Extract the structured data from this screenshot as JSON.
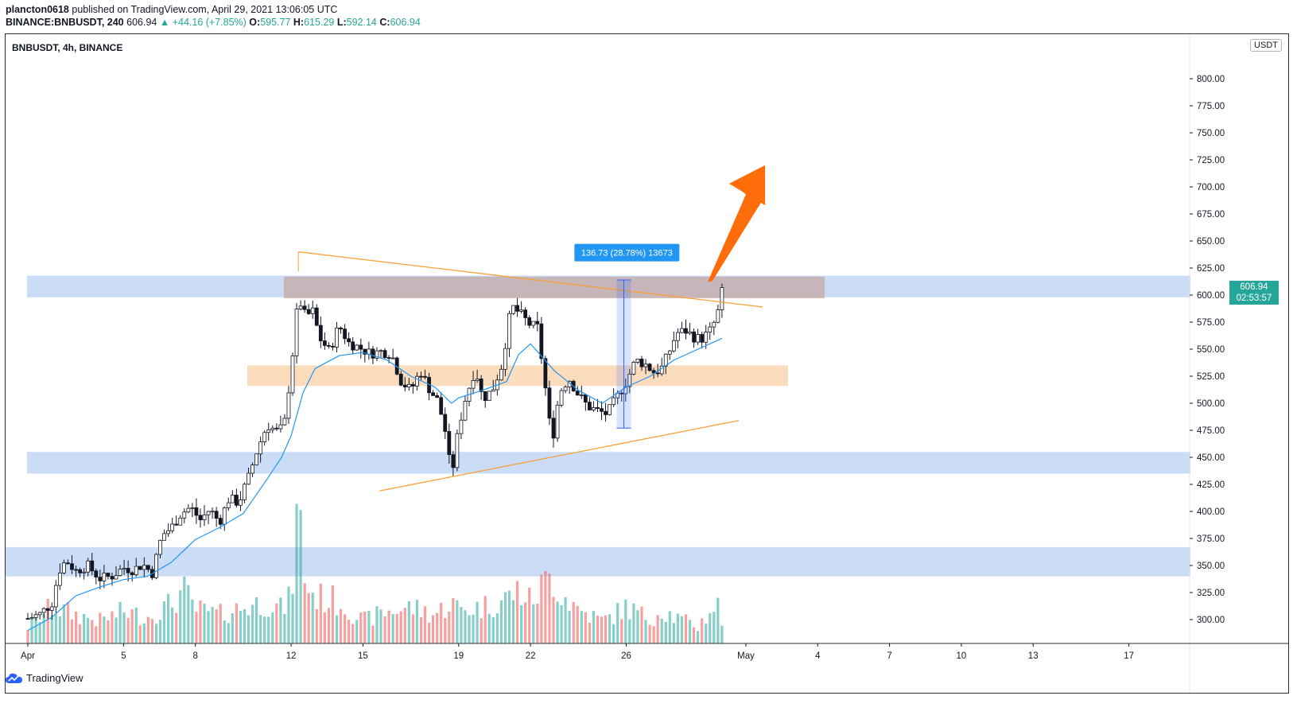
{
  "header": {
    "user": "plancton0618",
    "published": "published on TradingView.com, April 29, 2021 13:06:05 UTC",
    "symbol_interval": "BINANCE:BNBUSDT, 240",
    "last": "606.94",
    "change": "▲ +44.16 (+7.85%)",
    "o_label": "O:",
    "o": "595.77",
    "h_label": "H:",
    "h": "615.29",
    "l_label": "L:",
    "l": "592.14",
    "c_label": "C:",
    "c": "606.94"
  },
  "chart": {
    "symbol_label": "BNBUSDT, 4h, BINANCE",
    "currency": "USDT",
    "price_tag": {
      "price": "606.94",
      "countdown": "02:53:57"
    },
    "measure_label": "136.73 (28.78%) 13673",
    "colors": {
      "up": "#26a69a",
      "down": "#ef5350",
      "candle": "#131722",
      "ma": "#2196f3",
      "zone_blue": "#a8c5f2",
      "zone_orange": "#f9c99a",
      "trend": "#f7a035",
      "arrow": "#ff6d0a"
    }
  },
  "chart_data": {
    "type": "candlestick",
    "symbol": "BNBUSDT",
    "interval": "4h",
    "exchange": "BINANCE",
    "y_ticks": [
      "800.00",
      "775.00",
      "750.00",
      "725.00",
      "700.00",
      "675.00",
      "650.00",
      "625.00",
      "600.00",
      "575.00",
      "550.00",
      "525.00",
      "500.00",
      "475.00",
      "450.00",
      "425.00",
      "400.00",
      "375.00",
      "350.00",
      "325.00",
      "300.00"
    ],
    "y_tick_values": [
      800,
      775,
      750,
      725,
      700,
      675,
      650,
      625,
      600,
      575,
      550,
      525,
      500,
      475,
      450,
      425,
      400,
      375,
      350,
      325,
      300
    ],
    "ylim": [
      283,
      830
    ],
    "x_ticks": [
      "Apr",
      "5",
      "8",
      "12",
      "15",
      "19",
      "22",
      "26",
      "May",
      "4",
      "7",
      "10",
      "13",
      "17"
    ],
    "x_tick_days": [
      1,
      5,
      8,
      12,
      15,
      19,
      22,
      26,
      31,
      34,
      37,
      40,
      43,
      47
    ],
    "xlim_days": [
      0.9,
      49.6
    ],
    "candles_price_path": [
      [
        1.0,
        301
      ],
      [
        1.5,
        305
      ],
      [
        2.0,
        315
      ],
      [
        2.3,
        345
      ],
      [
        2.6,
        355
      ],
      [
        3.0,
        345
      ],
      [
        3.5,
        350
      ],
      [
        4.0,
        338
      ],
      [
        4.5,
        340
      ],
      [
        5.0,
        348
      ],
      [
        5.4,
        346
      ],
      [
        5.8,
        351
      ],
      [
        6.2,
        343
      ],
      [
        6.6,
        378
      ],
      [
        7.0,
        385
      ],
      [
        7.4,
        398
      ],
      [
        7.8,
        404
      ],
      [
        8.2,
        392
      ],
      [
        8.6,
        402
      ],
      [
        9.0,
        390
      ],
      [
        9.4,
        412
      ],
      [
        9.8,
        408
      ],
      [
        10.2,
        430
      ],
      [
        10.6,
        458
      ],
      [
        11.0,
        480
      ],
      [
        11.4,
        474
      ],
      [
        11.7,
        478
      ],
      [
        12.0,
        532
      ],
      [
        12.3,
        598
      ],
      [
        12.6,
        580
      ],
      [
        12.9,
        585
      ],
      [
        13.2,
        560
      ],
      [
        13.6,
        548
      ],
      [
        14.0,
        572
      ],
      [
        14.4,
        556
      ],
      [
        14.8,
        552
      ],
      [
        15.3,
        546
      ],
      [
        15.8,
        548
      ],
      [
        16.2,
        545
      ],
      [
        16.6,
        520
      ],
      [
        17.0,
        512
      ],
      [
        17.4,
        530
      ],
      [
        17.8,
        512
      ],
      [
        18.1,
        503
      ],
      [
        18.4,
        480
      ],
      [
        18.7,
        432
      ],
      [
        19.0,
        478
      ],
      [
        19.3,
        506
      ],
      [
        19.7,
        532
      ],
      [
        20.0,
        504
      ],
      [
        20.4,
        512
      ],
      [
        20.8,
        535
      ],
      [
        21.2,
        590
      ],
      [
        21.6,
        582
      ],
      [
        22.0,
        572
      ],
      [
        22.3,
        570
      ],
      [
        22.6,
        518
      ],
      [
        22.9,
        463
      ],
      [
        23.2,
        510
      ],
      [
        23.6,
        523
      ],
      [
        24.0,
        508
      ],
      [
        24.4,
        497
      ],
      [
        24.8,
        493
      ],
      [
        25.2,
        490
      ],
      [
        25.6,
        505
      ],
      [
        26.0,
        520
      ],
      [
        26.4,
        540
      ],
      [
        26.8,
        536
      ],
      [
        27.2,
        528
      ],
      [
        27.5,
        533
      ],
      [
        27.8,
        548
      ],
      [
        28.1,
        565
      ],
      [
        28.5,
        567
      ],
      [
        28.9,
        560
      ],
      [
        29.2,
        560
      ],
      [
        29.5,
        567
      ],
      [
        29.8,
        580
      ],
      [
        30.0,
        606.94
      ]
    ],
    "volume_profile": [
      [
        1.0,
        22
      ],
      [
        2.0,
        48
      ],
      [
        3.0,
        38
      ],
      [
        4.0,
        30
      ],
      [
        5.0,
        42
      ],
      [
        6.0,
        35
      ],
      [
        7.0,
        52
      ],
      [
        7.5,
        70
      ],
      [
        8.0,
        45
      ],
      [
        9.0,
        38
      ],
      [
        10.0,
        48
      ],
      [
        11.0,
        55
      ],
      [
        11.6,
        45
      ],
      [
        12.0,
        60
      ],
      [
        12.3,
        190
      ],
      [
        12.6,
        78
      ],
      [
        13.0,
        62
      ],
      [
        14.0,
        55
      ],
      [
        15.0,
        30
      ],
      [
        16.0,
        42
      ],
      [
        17.0,
        48
      ],
      [
        18.0,
        38
      ],
      [
        18.7,
        55
      ],
      [
        19.0,
        45
      ],
      [
        20.0,
        48
      ],
      [
        21.0,
        60
      ],
      [
        21.5,
        70
      ],
      [
        22.0,
        55
      ],
      [
        22.6,
        80
      ],
      [
        22.9,
        90
      ],
      [
        23.2,
        70
      ],
      [
        24.0,
        45
      ],
      [
        25.0,
        30
      ],
      [
        25.6,
        40
      ],
      [
        26.0,
        48
      ],
      [
        27.0,
        32
      ],
      [
        27.5,
        45
      ],
      [
        28.0,
        35
      ],
      [
        29.0,
        22
      ],
      [
        29.8,
        55
      ],
      [
        30.0,
        25
      ]
    ],
    "moving_average": [
      [
        1.0,
        290
      ],
      [
        2.0,
        302
      ],
      [
        3.0,
        322
      ],
      [
        4.0,
        330
      ],
      [
        5.0,
        337
      ],
      [
        6.0,
        340
      ],
      [
        7.0,
        353
      ],
      [
        8.0,
        374
      ],
      [
        9.0,
        385
      ],
      [
        10.0,
        398
      ],
      [
        11.0,
        430
      ],
      [
        11.6,
        450
      ],
      [
        12.0,
        470
      ],
      [
        12.5,
        510
      ],
      [
        13.0,
        532
      ],
      [
        14.0,
        544
      ],
      [
        15.0,
        547
      ],
      [
        16.0,
        540
      ],
      [
        17.0,
        525
      ],
      [
        18.0,
        515
      ],
      [
        18.7,
        500
      ],
      [
        19.0,
        505
      ],
      [
        20.0,
        512
      ],
      [
        21.0,
        520
      ],
      [
        21.5,
        545
      ],
      [
        22.0,
        555
      ],
      [
        23.0,
        530
      ],
      [
        24.0,
        512
      ],
      [
        25.0,
        500
      ],
      [
        26.0,
        515
      ],
      [
        27.0,
        525
      ],
      [
        28.0,
        540
      ],
      [
        29.0,
        550
      ],
      [
        30.0,
        560
      ]
    ]
  }
}
